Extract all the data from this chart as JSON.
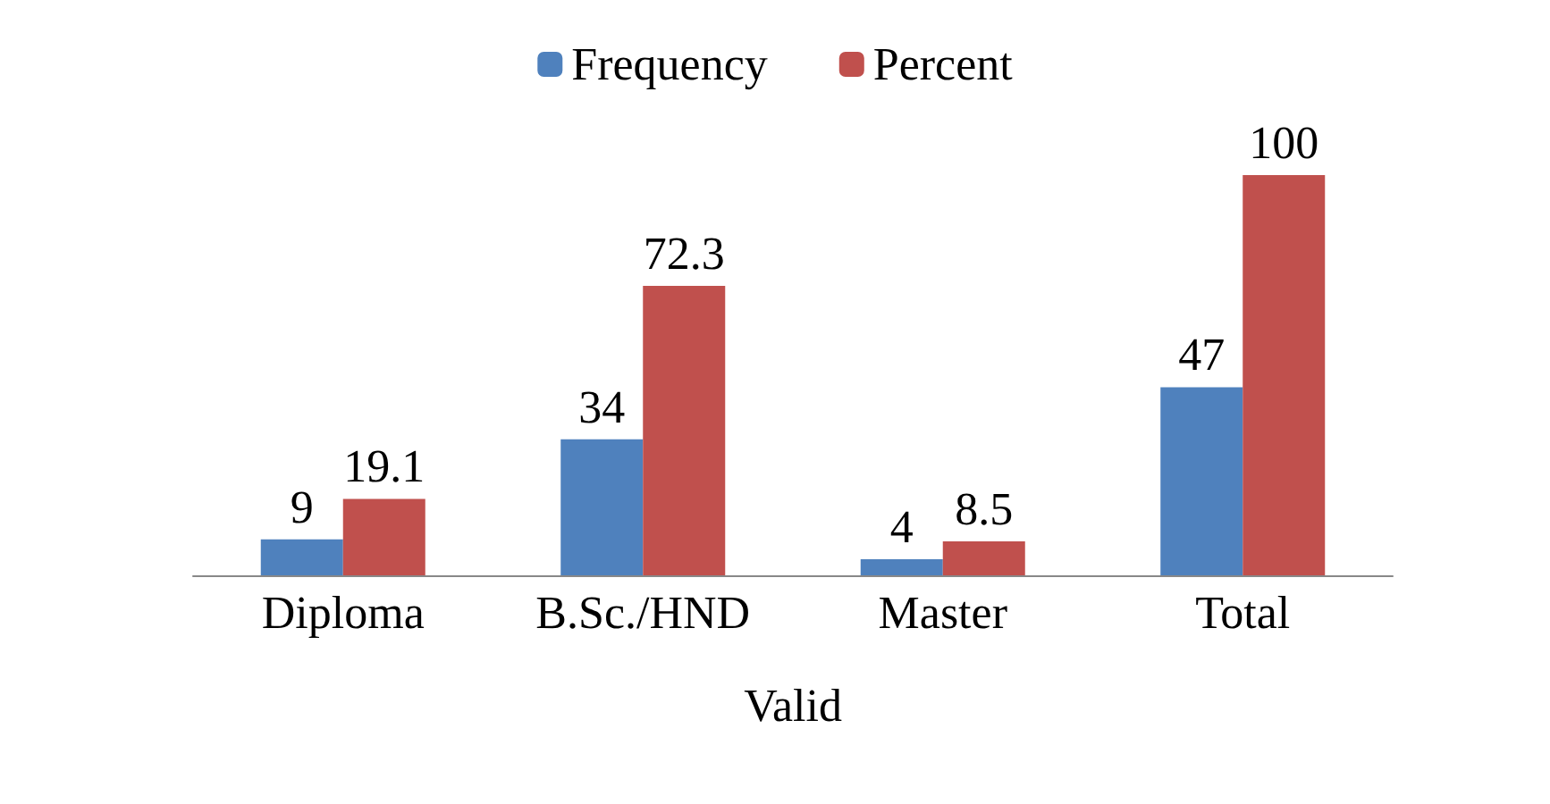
{
  "chart_data": {
    "type": "bar",
    "categories": [
      "Diploma",
      "B.Sc./HND",
      "Master",
      "Total"
    ],
    "xlabel": "Valid",
    "series": [
      {
        "name": "Frequency",
        "color": "#4f81bd",
        "values": [
          9,
          34,
          4,
          47
        ]
      },
      {
        "name": "Percent",
        "color": "#c0504d",
        "values": [
          19.1,
          72.3,
          8.5,
          100
        ]
      }
    ],
    "data_labels": true,
    "legend": "top"
  }
}
